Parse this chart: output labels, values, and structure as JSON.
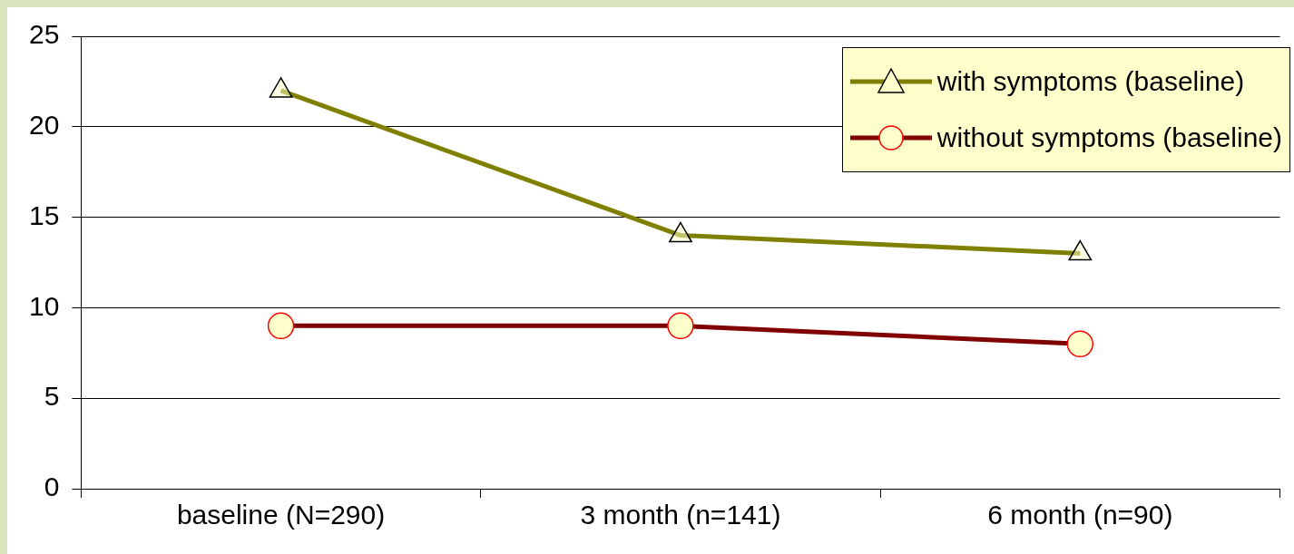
{
  "chart_data": {
    "type": "line",
    "categories": [
      "baseline (N=290)",
      "3 month (n=141)",
      "6 month (n=90)"
    ],
    "series": [
      {
        "name": "with symptoms (baseline)",
        "color": "#808000",
        "marker": "triangle",
        "values": [
          22,
          14,
          13
        ]
      },
      {
        "name": "without symptoms (baseline)",
        "color": "#800000",
        "marker": "circle",
        "values": [
          9,
          9,
          8
        ]
      }
    ],
    "ylim": [
      0,
      25
    ],
    "yticks": [
      0,
      5,
      10,
      15,
      20,
      25
    ],
    "grid": "y",
    "legend": "top right",
    "line_style": "solid"
  }
}
